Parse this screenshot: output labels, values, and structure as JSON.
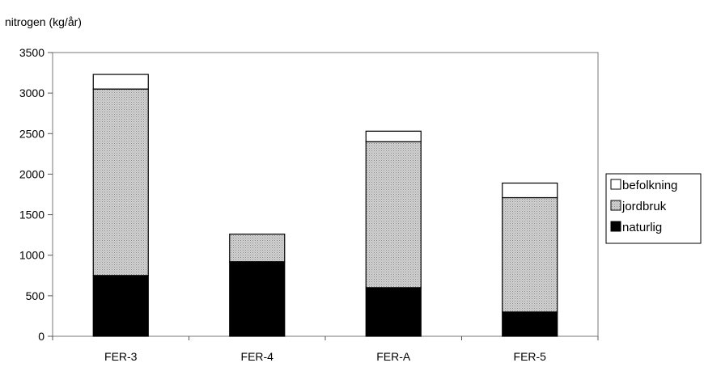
{
  "chart_data": {
    "type": "bar",
    "stacked": true,
    "ylabel": "nitrogen (kg/år)",
    "xlabel": "",
    "ylim": [
      0,
      3500
    ],
    "yticks": [
      0,
      500,
      1000,
      1500,
      2000,
      2500,
      3000,
      3500
    ],
    "categories": [
      "FER-3",
      "FER-4",
      "FER-A",
      "FER-5"
    ],
    "series": [
      {
        "name": "naturlig",
        "values": [
          750,
          920,
          600,
          300
        ],
        "color": "#000000"
      },
      {
        "name": "jordbruk",
        "values": [
          2300,
          340,
          1800,
          1410
        ],
        "color": "#c4c4c4"
      },
      {
        "name": "befolkning",
        "values": [
          180,
          0,
          130,
          180
        ],
        "color": "#ffffff"
      }
    ],
    "legend_order": [
      "befolkning",
      "jordbruk",
      "naturlig"
    ],
    "legend_position": "right",
    "grid": false
  }
}
